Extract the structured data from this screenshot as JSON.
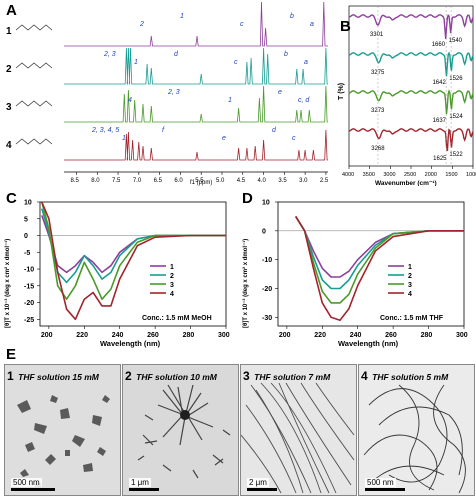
{
  "panels": {
    "A": {
      "label": "A",
      "xlabel": "f1 (ppm)",
      "ticks": [
        "8.5",
        "8.0",
        "7.5",
        "7.0",
        "6.5",
        "6.0",
        "5.5",
        "5.0",
        "4.5",
        "4.0",
        "3.5",
        "3.0",
        "2.5"
      ],
      "compounds": [
        {
          "id": "1",
          "color": "#8e3f9c",
          "peaks": [
            "a",
            "b",
            "c",
            "1",
            "2"
          ]
        },
        {
          "id": "2",
          "color": "#179e92",
          "peaks": [
            "a",
            "b",
            "c",
            "d",
            "1",
            "2, 3"
          ]
        },
        {
          "id": "3",
          "color": "#4a9a2a",
          "peaks": [
            "c, d",
            "e",
            "1",
            "2, 3",
            "4"
          ]
        },
        {
          "id": "4",
          "color": "#a3242d",
          "peaks": [
            "c",
            "d",
            "e",
            "f",
            "1",
            "2, 3, 4, 5"
          ]
        }
      ],
      "peak_label_color": "#1f3fbf"
    },
    "B": {
      "label": "B",
      "ylabel": "T (%)",
      "xlabel": "Wavenumber (cm⁻¹)",
      "ticks": [
        "4000",
        "3500",
        "3000",
        "2500",
        "2000",
        "1500",
        "1000"
      ],
      "series": [
        {
          "id": "1",
          "color": "#8e3f9c",
          "band_labels": [
            "3301",
            "1660",
            "1540"
          ]
        },
        {
          "id": "2",
          "color": "#179e92",
          "band_labels": [
            "3275",
            "1642",
            "1526"
          ]
        },
        {
          "id": "3",
          "color": "#4a9a2a",
          "band_labels": [
            "3273",
            "1637",
            "1524"
          ]
        },
        {
          "id": "4",
          "color": "#a3242d",
          "band_labels": [
            "3268",
            "1625",
            "1522"
          ]
        }
      ]
    },
    "C": {
      "label": "C",
      "ylabel": "[θ]T x 10⁻³ (deg x cm² x dmol⁻¹)",
      "xlabel": "Wavelength (nm)",
      "annotation": "Conc.: 1.5 mM MeOH",
      "xticks": [
        "200",
        "220",
        "240",
        "260",
        "280",
        "300"
      ],
      "yticks": [
        "10",
        "5",
        "0",
        "-5",
        "-10",
        "-15",
        "-20",
        "-25"
      ],
      "legend": [
        "1",
        "2",
        "3",
        "4"
      ]
    },
    "D": {
      "label": "D",
      "ylabel": "[θ]T x 10⁻³ (deg x cm² x dmol⁻¹)",
      "xlabel": "Wavelength (nm)",
      "annotation": "Conc.: 1.5 mM THF",
      "xticks": [
        "200",
        "220",
        "240",
        "260",
        "280",
        "300"
      ],
      "yticks": [
        "10",
        "0",
        "-10",
        "-20",
        "-30"
      ],
      "legend": [
        "1",
        "2",
        "3",
        "4"
      ]
    },
    "E": {
      "label": "E",
      "images": [
        {
          "num": "1",
          "caption": "THF solution 15 mM",
          "scale": "500 nm"
        },
        {
          "num": "2",
          "caption": "THF solution 10 mM",
          "scale": "1 μm"
        },
        {
          "num": "3",
          "caption": "THF solution 7 mM",
          "scale": "2 μm"
        },
        {
          "num": "4",
          "caption": "THF solution 5 mM",
          "scale": "500 nm"
        }
      ]
    }
  },
  "series_colors": [
    "#8e3f9c",
    "#179e92",
    "#4a9a2a",
    "#a3242d"
  ],
  "chart_data": [
    {
      "type": "line",
      "title": "",
      "xlabel": "Wavelength (nm)",
      "ylabel": "[θ]T x 10⁻³ (deg x cm² x dmol⁻¹)",
      "xlim": [
        195,
        300
      ],
      "ylim": [
        -27,
        10
      ],
      "annotation": "Conc.: 1.5 mM MeOH",
      "x": [
        196,
        200,
        205,
        210,
        215,
        220,
        225,
        230,
        235,
        240,
        250,
        260,
        280,
        300
      ],
      "series": [
        {
          "name": "1",
          "values": [
            6,
            0,
            -9,
            -11,
            -9,
            -6,
            -8,
            -11,
            -9,
            -5,
            -1,
            0,
            0,
            0
          ]
        },
        {
          "name": "2",
          "values": [
            8,
            1,
            -11,
            -14,
            -11,
            -6,
            -9,
            -13,
            -11,
            -6,
            -1,
            0,
            0,
            0
          ]
        },
        {
          "name": "3",
          "values": [
            10,
            2,
            -15,
            -19,
            -15,
            -8,
            -13,
            -19,
            -16,
            -9,
            -2,
            0,
            0,
            0
          ]
        },
        {
          "name": "4",
          "values": [
            10,
            5,
            -11,
            -22,
            -25,
            -19,
            -17,
            -21,
            -21,
            -13,
            -3,
            -0.5,
            0,
            0
          ]
        }
      ]
    },
    {
      "type": "line",
      "title": "",
      "xlabel": "Wavelength (nm)",
      "ylabel": "[θ]T x 10⁻³ (deg x cm² x dmol⁻¹)",
      "xlim": [
        195,
        300
      ],
      "ylim": [
        -33,
        10
      ],
      "annotation": "Conc.: 1.5 mM THF",
      "x": [
        205,
        210,
        215,
        220,
        225,
        230,
        235,
        240,
        250,
        260,
        280,
        300
      ],
      "series": [
        {
          "name": "1",
          "values": [
            5,
            0,
            -7,
            -13,
            -16,
            -16,
            -14,
            -10,
            -4,
            -1,
            0,
            0
          ]
        },
        {
          "name": "2",
          "values": [
            5,
            0,
            -9,
            -17,
            -20,
            -20,
            -17,
            -12,
            -5,
            -1,
            0,
            0
          ]
        },
        {
          "name": "3",
          "values": [
            5,
            0,
            -11,
            -21,
            -25,
            -25,
            -22,
            -15,
            -6,
            -1,
            0,
            0
          ]
        },
        {
          "name": "4",
          "values": [
            5,
            0,
            -13,
            -25,
            -30,
            -31,
            -27,
            -19,
            -7,
            -2,
            0,
            0
          ]
        }
      ]
    }
  ]
}
